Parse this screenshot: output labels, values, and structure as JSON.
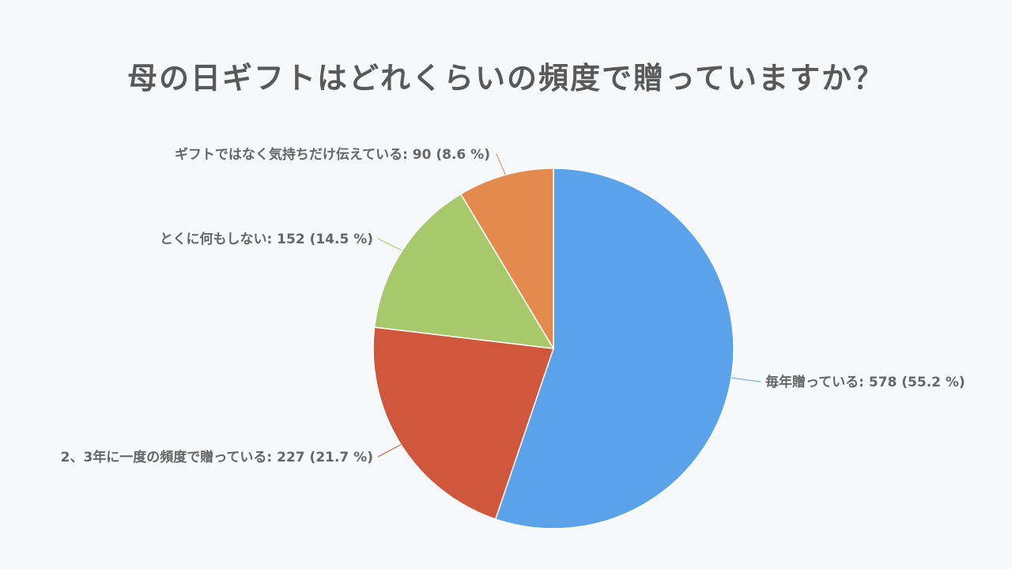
{
  "chart_data": {
    "type": "pie",
    "title": "母の日ギフトはどれくらいの頻度で贈っていますか？",
    "slices": [
      {
        "label": "毎年贈っている",
        "value": 578,
        "percent": "55.2 %",
        "color": "#5aa3ea"
      },
      {
        "label": "2、3年に一度の頻度で贈っている",
        "value": 227,
        "percent": "21.7 %",
        "color": "#d0573c"
      },
      {
        "label": "とくに何もしない",
        "value": 152,
        "percent": "14.5 %",
        "color": "#a7c86b"
      },
      {
        "label": "ギフトではなく気持ちだけ伝えている",
        "value": 90,
        "percent": "8.6 %",
        "color": "#e58a4f"
      }
    ],
    "grid": false,
    "legend": "none"
  }
}
